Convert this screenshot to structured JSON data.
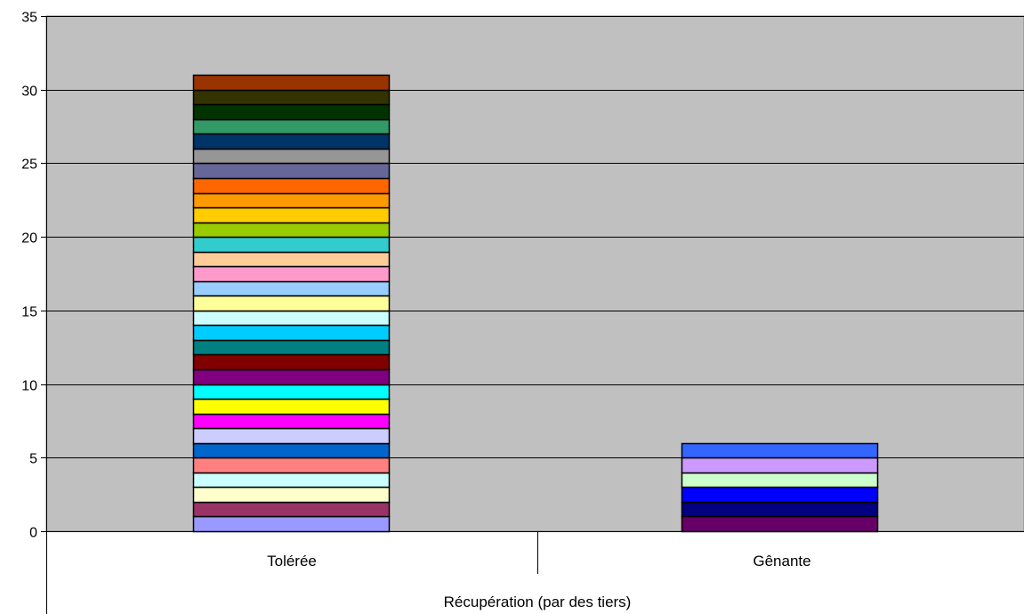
{
  "chart_data": {
    "type": "bar",
    "stacked": true,
    "categories": [
      "Tolérée",
      "Gênante"
    ],
    "group_label": "Récupération (par des tiers)",
    "title": "",
    "xlabel": "",
    "ylabel": "",
    "ylim": [
      0,
      35
    ],
    "yticks": [
      0,
      5,
      10,
      15,
      20,
      25,
      30,
      35
    ],
    "grid": true,
    "plot_background": "#c0c0c0",
    "legend": "none",
    "stacks": [
      {
        "category": "Tolérée",
        "segment_value": 1,
        "total": 31,
        "colors": [
          "#9999ff",
          "#993366",
          "#ffffcc",
          "#ccffff",
          "#ff8080",
          "#0066cc",
          "#ccccff",
          "#ff00ff",
          "#ffff00",
          "#00ffff",
          "#800080",
          "#800000",
          "#008080",
          "#00ccff",
          "#ccffff",
          "#ffff99",
          "#99ccff",
          "#ff99cc",
          "#ffcc99",
          "#33cccc",
          "#99cc00",
          "#ffcc00",
          "#ff9900",
          "#ff6600",
          "#666699",
          "#969696",
          "#003366",
          "#339966",
          "#003300",
          "#333300",
          "#993300"
        ]
      },
      {
        "category": "Gênante",
        "segment_value": 1,
        "total": 6,
        "colors": [
          "#660066",
          "#000080",
          "#0000ff",
          "#ccffcc",
          "#cc99ff",
          "#3366ff"
        ]
      }
    ]
  }
}
